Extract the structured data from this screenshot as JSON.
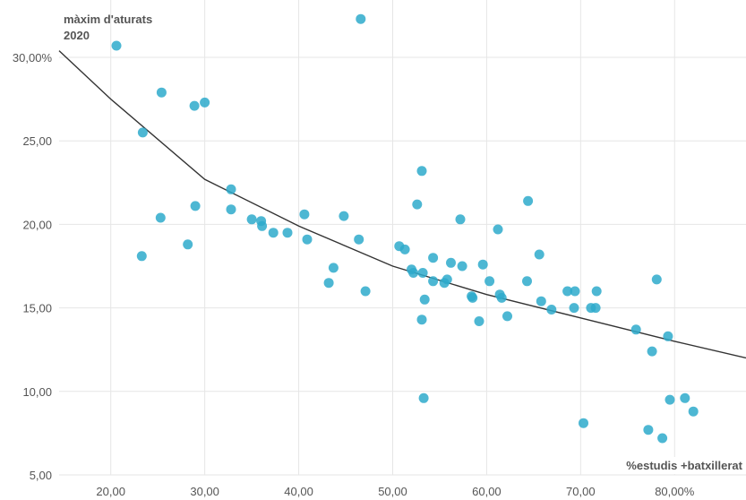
{
  "chart_data": {
    "type": "scatter",
    "title": "",
    "ylabel_lines": [
      "màxim d'aturats",
      "2020"
    ],
    "xlabel": "%estudis +batxillerat",
    "x_ticks": [
      "20,00",
      "30,00",
      "40,00",
      "50,00",
      "60,00",
      "70,00",
      "80,00%"
    ],
    "y_ticks": [
      "5,00",
      "10,00",
      "15,00",
      "20,00",
      "25,00",
      "30,00%"
    ],
    "xlim": [
      14.5,
      87.6
    ],
    "ylim": [
      5,
      32.9
    ],
    "grid": true,
    "point_color": "#2eaacb",
    "trend_color": "#333333",
    "trendline": {
      "type": "power",
      "points": [
        [
          14.5,
          30.4
        ],
        [
          20,
          27.5
        ],
        [
          30,
          22.7
        ],
        [
          40,
          19.9
        ],
        [
          50,
          17.5
        ],
        [
          60,
          15.8
        ],
        [
          70,
          14.4
        ],
        [
          80,
          13.0
        ],
        [
          87.6,
          12.0
        ]
      ]
    },
    "points": [
      [
        20.6,
        30.7
      ],
      [
        25.4,
        27.9
      ],
      [
        23.4,
        25.5
      ],
      [
        28.9,
        27.1
      ],
      [
        30.0,
        27.3
      ],
      [
        29.0,
        21.1
      ],
      [
        25.3,
        20.4
      ],
      [
        23.3,
        18.1
      ],
      [
        28.2,
        18.8
      ],
      [
        32.8,
        22.1
      ],
      [
        32.8,
        20.9
      ],
      [
        35.0,
        20.3
      ],
      [
        36.0,
        20.2
      ],
      [
        36.1,
        19.9
      ],
      [
        37.3,
        19.5
      ],
      [
        38.8,
        19.5
      ],
      [
        40.6,
        20.6
      ],
      [
        40.9,
        19.1
      ],
      [
        44.8,
        20.5
      ],
      [
        46.4,
        19.1
      ],
      [
        46.6,
        32.3
      ],
      [
        43.2,
        16.5
      ],
      [
        43.7,
        17.4
      ],
      [
        47.1,
        16.0
      ],
      [
        50.7,
        18.7
      ],
      [
        51.3,
        18.5
      ],
      [
        52.0,
        17.3
      ],
      [
        52.2,
        17.1
      ],
      [
        52.6,
        21.2
      ],
      [
        53.1,
        23.2
      ],
      [
        53.2,
        17.1
      ],
      [
        53.4,
        15.5
      ],
      [
        53.1,
        14.3
      ],
      [
        53.3,
        9.6
      ],
      [
        54.3,
        18.0
      ],
      [
        54.3,
        16.6
      ],
      [
        55.5,
        16.5
      ],
      [
        55.8,
        16.7
      ],
      [
        56.2,
        17.7
      ],
      [
        57.2,
        20.3
      ],
      [
        57.4,
        17.5
      ],
      [
        58.4,
        15.7
      ],
      [
        58.5,
        15.6
      ],
      [
        59.2,
        14.2
      ],
      [
        59.6,
        17.6
      ],
      [
        60.3,
        16.6
      ],
      [
        61.2,
        19.7
      ],
      [
        61.4,
        15.8
      ],
      [
        61.6,
        15.6
      ],
      [
        62.2,
        14.5
      ],
      [
        64.4,
        21.4
      ],
      [
        64.3,
        16.6
      ],
      [
        65.6,
        18.2
      ],
      [
        65.8,
        15.4
      ],
      [
        66.9,
        14.9
      ],
      [
        68.6,
        16.0
      ],
      [
        69.3,
        15.0
      ],
      [
        69.4,
        16.0
      ],
      [
        70.3,
        8.1
      ],
      [
        71.1,
        15.0
      ],
      [
        71.6,
        15.0
      ],
      [
        71.7,
        16.0
      ],
      [
        75.9,
        13.7
      ],
      [
        77.2,
        7.7
      ],
      [
        77.6,
        12.4
      ],
      [
        78.1,
        16.7
      ],
      [
        78.7,
        7.2
      ],
      [
        79.3,
        13.3
      ],
      [
        79.5,
        9.5
      ],
      [
        81.1,
        9.6
      ],
      [
        82.0,
        8.8
      ]
    ]
  }
}
